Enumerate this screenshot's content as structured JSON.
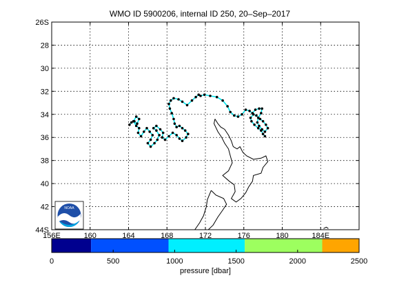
{
  "title": "WMO ID 5900206, internal ID 250, 20–Sep–2017",
  "map": {
    "lon_range": [
      156,
      188
    ],
    "lat_range": [
      26,
      44
    ],
    "lon_tick_labels": [
      "156E",
      "160",
      "164",
      "168",
      "172",
      "176",
      "180",
      "184E"
    ],
    "lat_tick_labels": [
      "26S",
      "28",
      "30",
      "32",
      "34",
      "36",
      "38",
      "40",
      "42",
      "44S"
    ],
    "grid": true,
    "coastline_color": "#000000",
    "track_color": "#00e5ee",
    "point_color": "#000000",
    "logo": "noaa-logo",
    "logo_text": "NOAA"
  },
  "colorbar": {
    "label": "pressure [dbar]",
    "tick_labels": [
      "0",
      "500",
      "1000",
      "1500",
      "2000",
      "2500"
    ],
    "range": [
      0,
      2500
    ],
    "segments": [
      {
        "from": 0,
        "to": 320,
        "color": "#00008f"
      },
      {
        "from": 320,
        "to": 950,
        "color": "#0050ff"
      },
      {
        "from": 950,
        "to": 1570,
        "color": "#00efff"
      },
      {
        "from": 1570,
        "to": 2200,
        "color": "#9dff5f"
      },
      {
        "from": 2200,
        "to": 2500,
        "color": "#ffa500"
      }
    ]
  },
  "chart_data": {
    "type": "scatter",
    "title": "WMO ID 5900206, internal ID 250, 20–Sep–2017",
    "xlabel": "",
    "ylabel": "",
    "xlim": [
      156,
      188
    ],
    "ylim": [
      26,
      44
    ],
    "series": [
      {
        "x": [
          164.1,
          164.3,
          164.6,
          164.9,
          165.1,
          164.8,
          164.5,
          164.8,
          165.1,
          165.0,
          165.3,
          165.6,
          165.9,
          166.2,
          166.5,
          166.3,
          166.0,
          166.3,
          166.7,
          167.0,
          167.2,
          166.9,
          166.6,
          166.9,
          167.3,
          167.6,
          167.5,
          167.8,
          168.2,
          168.6,
          169.0,
          169.3,
          169.6,
          170.0,
          170.2,
          169.9,
          169.6,
          169.3,
          169.0,
          168.8,
          168.7,
          168.5,
          168.3,
          168.2,
          168.4,
          168.7,
          169.2,
          169.6,
          170.1,
          170.6,
          171.0,
          171.3,
          171.5,
          171.9,
          172.5,
          173.2,
          173.8,
          174.3,
          174.6,
          175.0,
          175.4,
          175.8,
          176.2,
          176.6,
          176.9,
          177.2,
          177.6,
          177.9,
          177.8,
          177.5,
          177.4,
          177.6,
          177.9,
          178.2,
          178.5,
          178.3,
          178.0,
          177.7,
          177.3,
          177.0,
          176.7,
          176.8,
          177.1,
          177.5,
          177.8,
          178.0,
          178.2
        ],
        "y": [
          34.9,
          34.7,
          34.6,
          34.8,
          34.4,
          34.2,
          34.6,
          35.0,
          35.2,
          35.6,
          35.9,
          35.5,
          35.2,
          35.5,
          35.8,
          36.2,
          36.5,
          36.8,
          36.5,
          36.2,
          35.8,
          35.4,
          35.2,
          35.0,
          35.3,
          35.6,
          36.0,
          36.2,
          35.9,
          35.6,
          35.8,
          36.1,
          36.3,
          36.0,
          35.7,
          35.4,
          35.2,
          35.0,
          35.1,
          34.8,
          34.4,
          33.9,
          33.5,
          33.1,
          32.8,
          32.6,
          32.7,
          32.9,
          33.2,
          32.8,
          32.5,
          32.3,
          32.4,
          32.3,
          32.4,
          32.5,
          32.8,
          33.3,
          33.8,
          34.1,
          34.2,
          34.0,
          33.6,
          33.7,
          33.9,
          33.6,
          33.5,
          33.5,
          33.9,
          34.3,
          34.7,
          35.0,
          35.3,
          35.5,
          35.2,
          34.9,
          34.6,
          34.4,
          34.1,
          34.0,
          34.3,
          34.6,
          34.9,
          35.2,
          35.4,
          35.7,
          35.9
        ],
        "pressure_dbar": [
          1200,
          1200,
          1200,
          1200,
          1200,
          1200,
          1200,
          1200,
          1200,
          1200,
          1200,
          1200,
          1200,
          1200,
          1200,
          1200,
          1200,
          1200,
          1200,
          1200,
          1200,
          1200,
          1200,
          1200,
          1200,
          1200,
          1200,
          1200,
          1200,
          1200,
          1200,
          1200,
          1200,
          1200,
          1200,
          1200,
          1200,
          1200,
          1200,
          1200,
          1200,
          1200,
          1200,
          1200,
          1200,
          1200,
          1200,
          1200,
          1200,
          1200,
          1200,
          1200,
          1200,
          1200,
          1200,
          1200,
          1200,
          1200,
          1200,
          1200,
          1200,
          1200,
          1200,
          1200,
          1200,
          1200,
          1200,
          1200,
          1200,
          1200,
          1200,
          1200,
          1200,
          1200,
          1200,
          1200,
          1200,
          1200,
          1200,
          1200,
          1200,
          1200,
          1200,
          1200,
          1200,
          1200,
          1200
        ]
      }
    ]
  }
}
